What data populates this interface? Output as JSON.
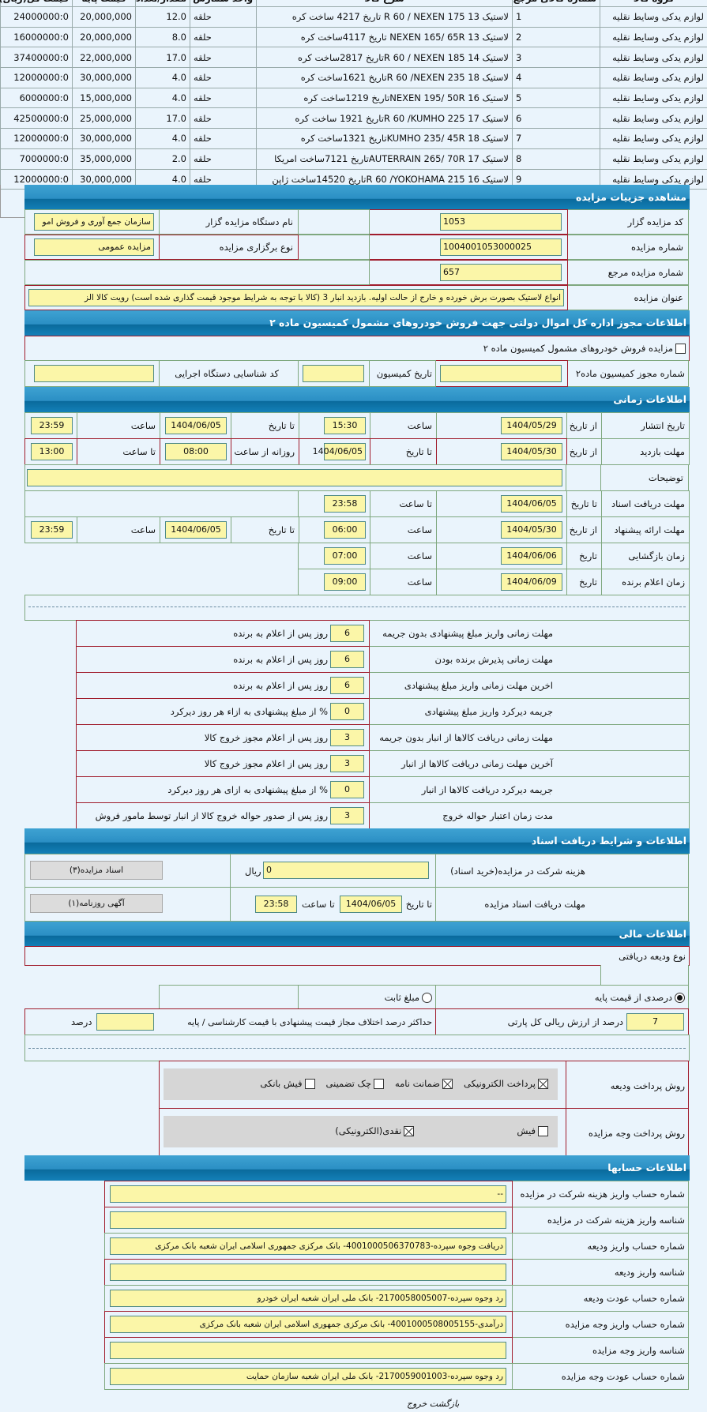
{
  "items_table": {
    "headers": [
      "گروه کالا",
      "شماره کالای مرجع",
      "شرح کالا",
      "واحد شمارش",
      "مقدار/تعداد",
      "قیمت پایه",
      "قیمت کل(ریال)"
    ],
    "rows": [
      [
        "لوازم یدکی وسایط نقلیه",
        "1",
        "لاستیک 13 R 60 / NEXEN 175 تاریخ 4217 ساخت کره",
        "حلقه",
        "12.0",
        "20,000,000",
        "24000000:0"
      ],
      [
        "لوازم یدکی وسایط نقلیه",
        "2",
        "لاستیک 13 NEXEN 165/ 65R تاریخ 4117ساخت کره",
        "حلقه",
        "8.0",
        "20,000,000",
        "16000000:0"
      ],
      [
        "لوازم یدکی وسایط نقلیه",
        "3",
        "لاستیک 14 R 60 / NEXEN 185تاریخ 2817ساخت کره",
        "حلقه",
        "17.0",
        "22,000,000",
        "37400000:0"
      ],
      [
        "لوازم یدکی وسایط نقلیه",
        "4",
        "لاستیک 18 R 60 /NEXEN 235تاریخ 1621ساخت کره",
        "حلقه",
        "4.0",
        "30,000,000",
        "12000000:0"
      ],
      [
        "لوازم یدکی وسایط نقلیه",
        "5",
        "لاستیک 16 NEXEN 195/ 50Rتاریخ 1219ساخت کره",
        "حلقه",
        "4.0",
        "15,000,000",
        "6000000:0"
      ],
      [
        "لوازم یدکی وسایط نقلیه",
        "6",
        "لاستیک 17 R 60 /KUMHO 225تاریخ 1921 ساخت کره",
        "حلقه",
        "17.0",
        "25,000,000",
        "42500000:0"
      ],
      [
        "لوازم یدکی وسایط نقلیه",
        "7",
        "لاستیک 18 KUMHO 235/ 45Rتاریخ 1321ساخت کره",
        "حلقه",
        "4.0",
        "30,000,000",
        "12000000:0"
      ],
      [
        "لوازم یدکی وسایط نقلیه",
        "8",
        "لاستیک 17 AUTERRAIN 265/ 70Rتاریخ 7121ساخت امریکا",
        "حلقه",
        "2.0",
        "35,000,000",
        "7000000:0"
      ],
      [
        "لوازم یدکی وسایط نقلیه",
        "9",
        "لاستیک 16 R 60 /YOKOHAMA 215تاریخ 14520ساخت ژاپن",
        "حلقه",
        "4.0",
        "30,000,000",
        "12000000:0"
      ]
    ]
  },
  "details": {
    "title": "مشاهده جزییات مزایده",
    "auctioneer_code_label": "کد مزایده گزار",
    "auctioneer_code": "1053",
    "org_name_label": "نام دستگاه مزایده گزار",
    "org_name": "سازمان جمع آوری و فروش امو",
    "auction_number_label": "شماره مزایده",
    "auction_number": "1004001053000025",
    "auction_type_label": "نوع برگزاری مزایده",
    "auction_type": "مزایده عمومی",
    "ref_number_label": "شماره مزایده مرجع",
    "ref_number": "657",
    "title_label": "عنوان مزایده",
    "auction_title": "انواع لاستیک بصورت برش خورده و خارج از حالت اولیه. بازدید انبار 3 (کالا با توجه به شرایط موجود قیمت گذاری شده است) رویت کالا الز"
  },
  "permit": {
    "title": "اطلاعات مجوز اداره کل اموال دولتی جهت فروش خودروهای مشمول کمیسیون ماده ۲",
    "checkbox_label": "مزایده فروش خودروهای مشمول کمیسیون ماده ۲",
    "checked": false,
    "permit_number_label": "شماره مجوز کمیسیون ماده۲",
    "permit_number": "",
    "commission_date_label": "تاریخ کمیسیون",
    "commission_date": "",
    "exec_code_label": "کد شناسایی دستگاه اجرایی",
    "exec_code": ""
  },
  "timing": {
    "title": "اطلاعات زمانی",
    "publish": {
      "label": "تاریخ انتشار",
      "from_label": "از تاریخ",
      "from": "1404/05/29",
      "time1_label": "ساعت",
      "time1": "15:30",
      "to_label": "تا تاریخ",
      "to": "1404/06/05",
      "time2_label": "ساعت",
      "time2": "23:59"
    },
    "visit": {
      "label": "مهلت بازدید",
      "from_label": "از تاریخ",
      "from": "1404/05/30",
      "to_label": "تا تاریخ",
      "to": "1404/06/05",
      "daily_label": "روزانه از ساعت",
      "daily_from": "08:00",
      "until_label": "تا ساعت",
      "daily_to": "13:00"
    },
    "notes_label": "توضیحات",
    "notes": "",
    "docs": {
      "label": "مهلت دریافت اسناد",
      "to_label": "تا تاریخ",
      "to": "1404/06/05",
      "time_label": "تا ساعت",
      "time": "23:58"
    },
    "offer": {
      "label": "مهلت ارائه پیشنهاد",
      "from_label": "از تاریخ",
      "from": "1404/05/30",
      "time1_label": "ساعت",
      "time1": "06:00",
      "to_label": "تا تاریخ",
      "to": "1404/06/05",
      "time2_label": "ساعت",
      "time2": "23:59"
    },
    "opening": {
      "label": "زمان بازگشایی",
      "date_label": "تاریخ",
      "date": "1404/06/06",
      "time_label": "ساعت",
      "time": "07:00"
    },
    "winner": {
      "label": "زمان اعلام برنده",
      "date_label": "تاریخ",
      "date": "1404/06/09",
      "time_label": "ساعت",
      "time": "09:00"
    }
  },
  "deadlines": [
    {
      "label": "مهلت زمانی واریز مبلغ پیشنهادی بدون جریمه",
      "value": "6",
      "suffix": "روز پس از اعلام به برنده"
    },
    {
      "label": "مهلت زمانی پذیرش برنده بودن",
      "value": "6",
      "suffix": "روز پس از اعلام به برنده"
    },
    {
      "label": "اخرین مهلت زمانی واریز مبلغ پیشنهادی",
      "value": "6",
      "suffix": "روز پس از اعلام به برنده"
    },
    {
      "label": "جریمه دیرکرد واریز مبلغ پیشنهادی",
      "value": "0",
      "suffix": "% از مبلغ پیشنهادی به ازاء هر روز دیرکرد"
    },
    {
      "label": "مهلت زمانی دریافت کالاها از انبار بدون جریمه",
      "value": "3",
      "suffix": "روز پس از اعلام مجوز خروج کالا"
    },
    {
      "label": "آخرین مهلت زمانی دریافت کالاها از انبار",
      "value": "3",
      "suffix": "روز پس از اعلام مجوز خروج کالا"
    },
    {
      "label": "جریمه دیرکرد دریافت کالاها از انبار",
      "value": "0",
      "suffix": "% از مبلغ پیشنهادی به ازای هر روز دیرکرد"
    },
    {
      "label": "مدت زمان اعتبار حواله خروج",
      "value": "3",
      "suffix": "روز پس از صدور حواله خروج کالا از انبار توسط مامور فروش"
    }
  ],
  "documents": {
    "title": "اطلاعات و شرایط دریافت اسناد",
    "fee_label": "هزینه شرکت در مزایده(خرید اسناد)",
    "fee": "0",
    "currency": "ریال",
    "docs_button": "اسناد مزایده(۳)",
    "deadline_label": "مهلت دریافت اسناد مزایده",
    "to_date_label": "تا تاریخ",
    "to_date": "1404/06/05",
    "to_time_label": "تا ساعت",
    "to_time": "23:58",
    "ad_button": "آگهی روزنامه(۱)"
  },
  "financial": {
    "title": "اطلاعات مالی",
    "deposit_type_label": "نوع ودیعه دریافتی",
    "radio_percent": "درصدی از قیمت پایه",
    "radio_fixed": "مبلغ ثابت",
    "selected": "percent",
    "percent_value": "7",
    "percent_suffix": "درصد از ارزش ریالی کل پارتی",
    "max_diff_label": "حداکثر درصد اختلاف مجاز قیمت پیشنهادی با قیمت کارشناسی / پایه",
    "max_diff": "",
    "max_diff_suffix": "درصد",
    "deposit_method_label": "روش پرداخت ودیعه",
    "deposit_methods": [
      {
        "label": "پرداخت الکترونیکی",
        "checked": true
      },
      {
        "label": "ضمانت نامه",
        "checked": true
      },
      {
        "label": "چک تضمینی",
        "checked": false
      },
      {
        "label": "فیش بانکی",
        "checked": false
      }
    ],
    "payment_method_label": "روش پرداخت وجه مزایده",
    "payment_methods": [
      {
        "label": "فیش",
        "checked": false
      },
      {
        "label": "نقدی(الکترونیکی)",
        "checked": true
      }
    ]
  },
  "accounts": {
    "title": "اطلاعات حسابها",
    "rows": [
      {
        "label": "شماره حساب واریز هزینه شرکت در مزایده",
        "value": "--"
      },
      {
        "label": "شناسه واریز هزینه شرکت در مزایده",
        "value": ""
      },
      {
        "label": "شماره حساب واریز ودیعه",
        "value": "دریافت وجوه سپرده-4001000506370783- بانک مرکزی جمهوری اسلامی ایران شعبه بانک مرکزی"
      },
      {
        "label": "شناسه واریز ودیعه",
        "value": ""
      },
      {
        "label": "شماره حساب عودت ودیعه",
        "value": "رد وجوه سپرده-2170058005007- بانک ملی ایران شعبه ایران خودرو"
      },
      {
        "label": "شماره حساب واریز وجه مزایده",
        "value": "درآمدی-4001000508005155- بانک مرکزی جمهوری اسلامی ایران شعبه بانک مرکزی"
      },
      {
        "label": "شناسه واریز وجه مزایده",
        "value": ""
      },
      {
        "label": "شماره حساب عودت وجه مزایده",
        "value": "رد وجوه سپرده-2170059001003- بانک ملی ایران شعبه سازمان حمایت"
      }
    ]
  },
  "footer": {
    "back": "بازگشت",
    "exit": "خروج"
  }
}
